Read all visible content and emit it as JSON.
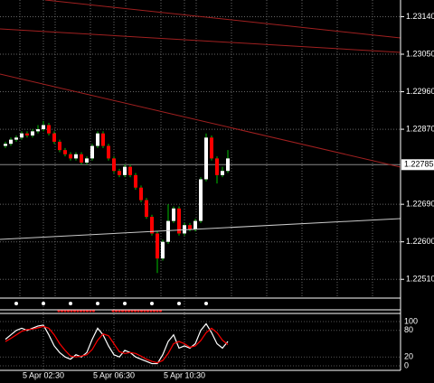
{
  "chart_data": {
    "type": "candlestick",
    "up_color": "#ffffff",
    "down_color": "#ff0000",
    "wick_color": "#00c000",
    "grid": true,
    "ylim": [
      1.22465,
      1.2318
    ],
    "yticks": [
      {
        "value": 1.2314,
        "label": "1.23140"
      },
      {
        "value": 1.2305,
        "label": "1.23050"
      },
      {
        "value": 1.2296,
        "label": "1.22960"
      },
      {
        "value": 1.2287,
        "label": "1.22870"
      },
      {
        "value": 1.2269,
        "label": "1.22690"
      },
      {
        "value": 1.226,
        "label": "1.22600"
      },
      {
        "value": 1.2251,
        "label": "1.22510"
      }
    ],
    "current_price": 1.22785,
    "xticks": [
      {
        "value": 7,
        "label": "5 Apr 02:30"
      },
      {
        "value": 20,
        "label": "5 Apr 06:30"
      },
      {
        "value": 33,
        "label": "5 Apr 10:30"
      }
    ],
    "open": [
      1.2283,
      1.22835,
      1.22845,
      1.2285,
      1.2286,
      1.22855,
      1.22865,
      1.2287,
      1.2288,
      1.2286,
      1.2284,
      1.2282,
      1.2281,
      1.228,
      1.2281,
      1.2279,
      1.228,
      1.2283,
      1.2286,
      1.2283,
      1.228,
      1.2277,
      1.2276,
      1.2278,
      1.2276,
      1.2273,
      1.227,
      1.2266,
      1.2262,
      1.2256,
      1.226,
      1.2265,
      1.2268,
      1.2262,
      1.2264,
      1.2263,
      1.2265,
      1.2275,
      1.2285,
      1.228,
      1.2276,
      1.2277
    ],
    "high": [
      1.2284,
      1.2285,
      1.22855,
      1.22865,
      1.22865,
      1.2287,
      1.2288,
      1.2289,
      1.22885,
      1.22865,
      1.22845,
      1.22825,
      1.22815,
      1.22815,
      1.22815,
      1.22805,
      1.22835,
      1.22865,
      1.22865,
      1.22835,
      1.22805,
      1.22775,
      1.22785,
      1.22785,
      1.22765,
      1.22735,
      1.22705,
      1.22665,
      1.22625,
      1.22605,
      1.2269,
      1.22685,
      1.22685,
      1.22645,
      1.22645,
      1.22655,
      1.22755,
      1.2286,
      1.22855,
      1.22805,
      1.2278,
      1.2282
    ],
    "low": [
      1.22825,
      1.2283,
      1.2284,
      1.22845,
      1.2285,
      1.2285,
      1.2286,
      1.22865,
      1.22855,
      1.22835,
      1.22815,
      1.22805,
      1.22795,
      1.22795,
      1.22785,
      1.22785,
      1.22795,
      1.22825,
      1.22825,
      1.22795,
      1.22765,
      1.22755,
      1.22755,
      1.22755,
      1.22725,
      1.22695,
      1.22655,
      1.22615,
      1.22525,
      1.22555,
      1.22595,
      1.22645,
      1.22615,
      1.22615,
      1.22625,
      1.22625,
      1.22645,
      1.22745,
      1.22795,
      1.2274,
      1.22755,
      1.22765
    ],
    "close": [
      1.22835,
      1.22845,
      1.2285,
      1.2286,
      1.22855,
      1.22865,
      1.2287,
      1.2288,
      1.2286,
      1.2284,
      1.2282,
      1.2281,
      1.228,
      1.2281,
      1.2279,
      1.228,
      1.2283,
      1.2286,
      1.2283,
      1.228,
      1.2277,
      1.2276,
      1.2278,
      1.2276,
      1.2273,
      1.227,
      1.2266,
      1.2262,
      1.2256,
      1.226,
      1.2265,
      1.2268,
      1.2262,
      1.2264,
      1.2263,
      1.2265,
      1.2275,
      1.2285,
      1.228,
      1.2276,
      1.2277,
      1.228
    ],
    "oscillator": {
      "ylim": [
        0,
        100
      ],
      "yticks": [
        100,
        80,
        20,
        0
      ],
      "series": [
        {
          "color": "#ffffff",
          "values": [
            60,
            70,
            80,
            85,
            80,
            85,
            90,
            92,
            70,
            45,
            30,
            20,
            15,
            25,
            20,
            30,
            60,
            85,
            70,
            45,
            25,
            20,
            35,
            30,
            20,
            15,
            10,
            5,
            5,
            25,
            55,
            70,
            40,
            45,
            40,
            50,
            80,
            95,
            75,
            50,
            40,
            55
          ]
        },
        {
          "color": "#ff0000",
          "values": [
            55,
            62,
            70,
            78,
            82,
            83,
            86,
            89,
            85,
            70,
            50,
            35,
            22,
            20,
            22,
            25,
            37,
            58,
            72,
            68,
            50,
            32,
            28,
            30,
            28,
            22,
            15,
            10,
            7,
            12,
            28,
            50,
            55,
            50,
            42,
            45,
            57,
            75,
            85,
            75,
            58,
            48
          ]
        }
      ]
    }
  }
}
